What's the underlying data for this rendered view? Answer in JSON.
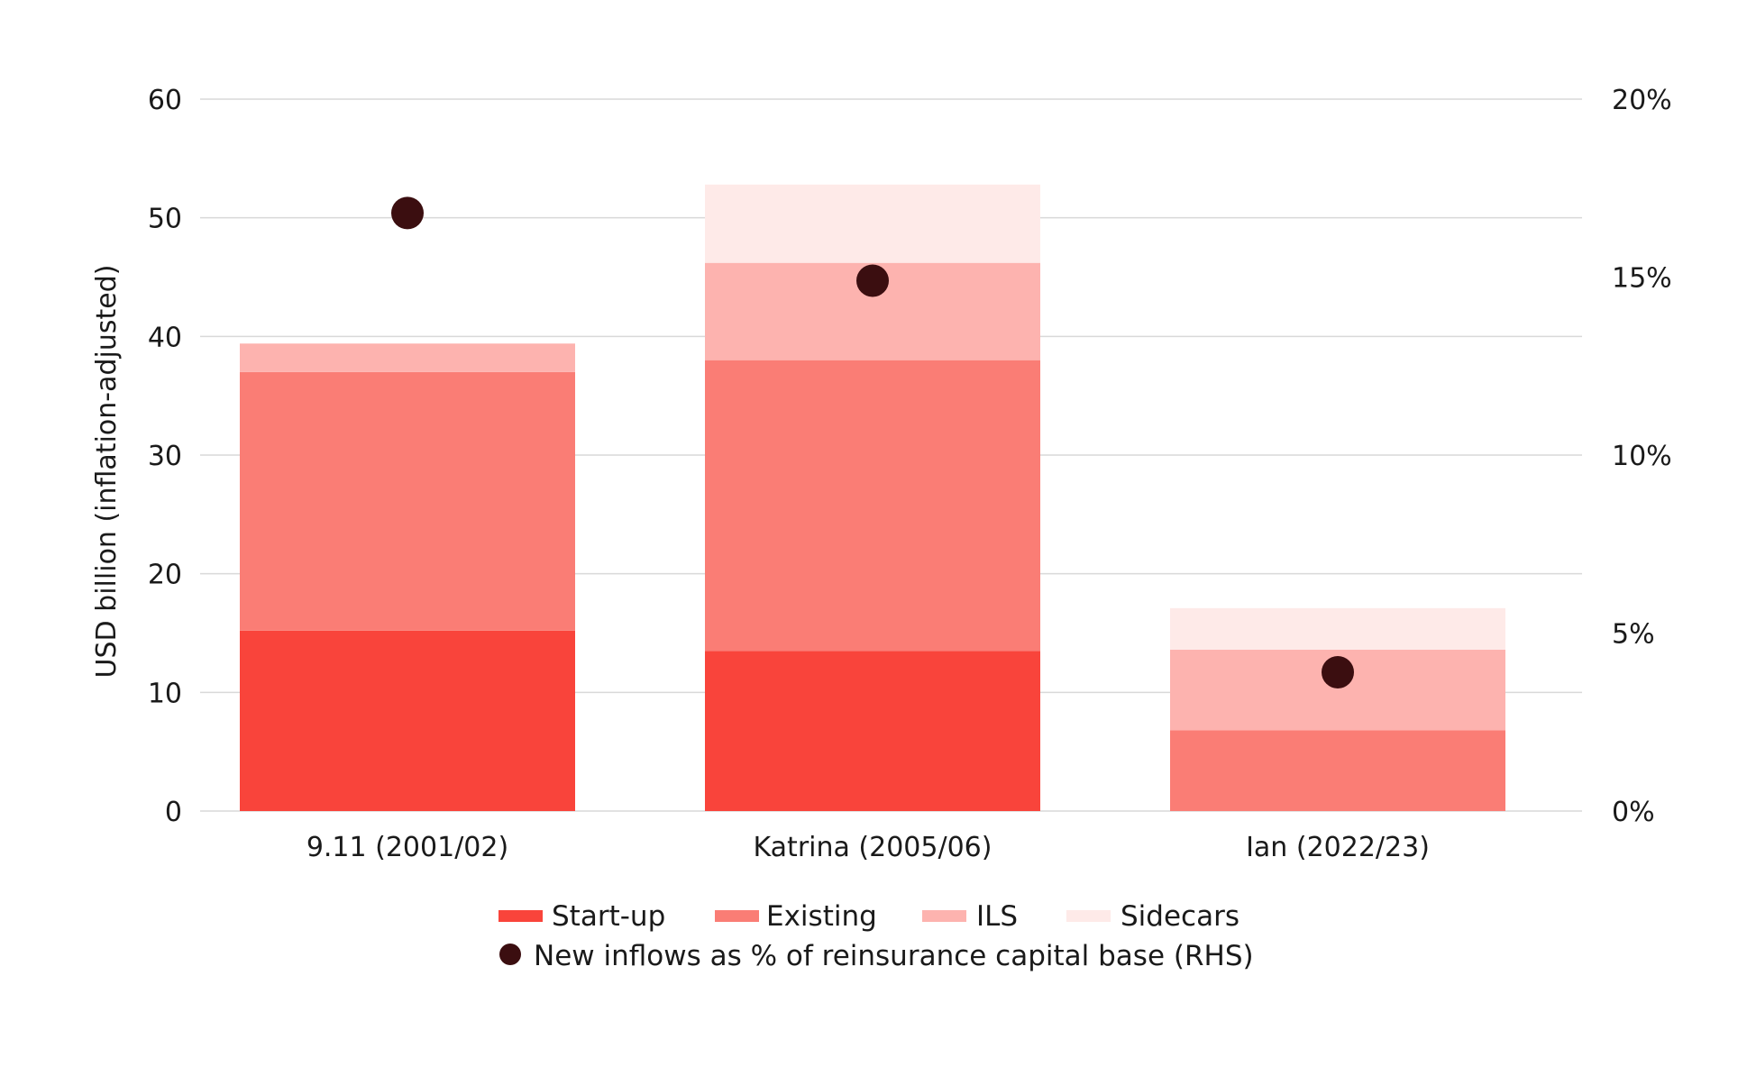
{
  "chart_data": {
    "type": "bar",
    "stacked": true,
    "categories": [
      "9.11 (2001/02)",
      "Katrina (2005/06)",
      "Ian (2022/23)"
    ],
    "series": [
      {
        "name": "Start-up",
        "color": "#f9443b",
        "values": [
          15.2,
          13.5,
          0
        ]
      },
      {
        "name": "Existing",
        "color": "#fa7d75",
        "values": [
          21.8,
          24.5,
          6.8
        ]
      },
      {
        "name": "ILS",
        "color": "#fdb3af",
        "values": [
          2.4,
          8.2,
          6.8
        ]
      },
      {
        "name": "Sidecars",
        "color": "#feeae8",
        "values": [
          0,
          6.6,
          3.5
        ]
      }
    ],
    "overlay_series": {
      "name": "New inflows as % of reinsurance capital base (RHS)",
      "color": "#3b0e10",
      "type": "scatter",
      "axis": "right",
      "values": [
        16.8,
        14.9,
        3.9
      ]
    },
    "ylabel": "USD billion (inflation-adjusted)",
    "ylim": [
      0,
      60
    ],
    "yticks": [
      "0",
      "10",
      "20",
      "30",
      "40",
      "50",
      "60"
    ],
    "y2lim": [
      0,
      20
    ],
    "y2ticks": [
      "0%",
      "5%",
      "10%",
      "15%",
      "20%"
    ],
    "grid": true,
    "legend_position": "bottom"
  }
}
